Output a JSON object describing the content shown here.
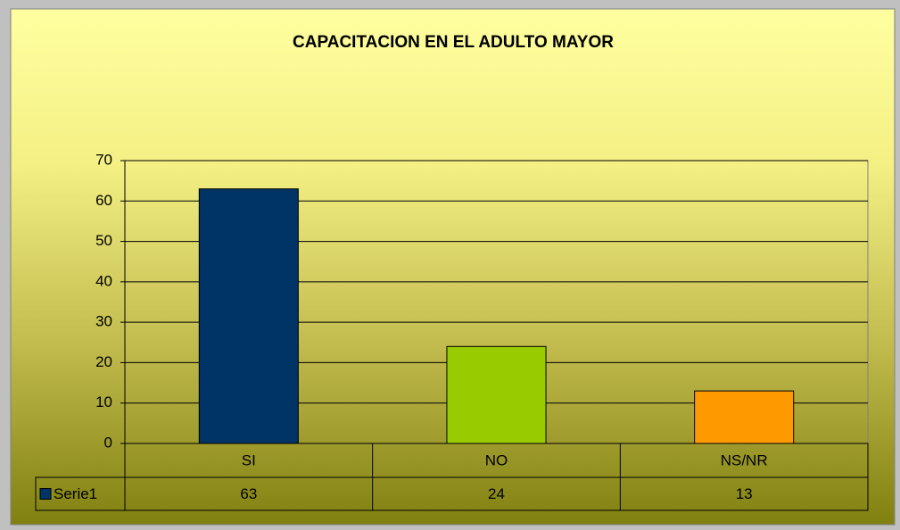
{
  "chart_data": {
    "type": "bar",
    "title": "CAPACITACION EN EL ADULTO MAYOR",
    "categories": [
      "SI",
      "NO",
      "NS/NR"
    ],
    "series": [
      {
        "name": "Serie1",
        "color": "#003366",
        "values": [
          63,
          24,
          13
        ]
      }
    ],
    "colors": [
      "#003366",
      "#99cc00",
      "#ff9900"
    ],
    "ylim": [
      0,
      70
    ],
    "yticks": [
      0,
      10,
      20,
      30,
      40,
      50,
      60,
      70
    ],
    "grid": true,
    "data_table": true
  }
}
